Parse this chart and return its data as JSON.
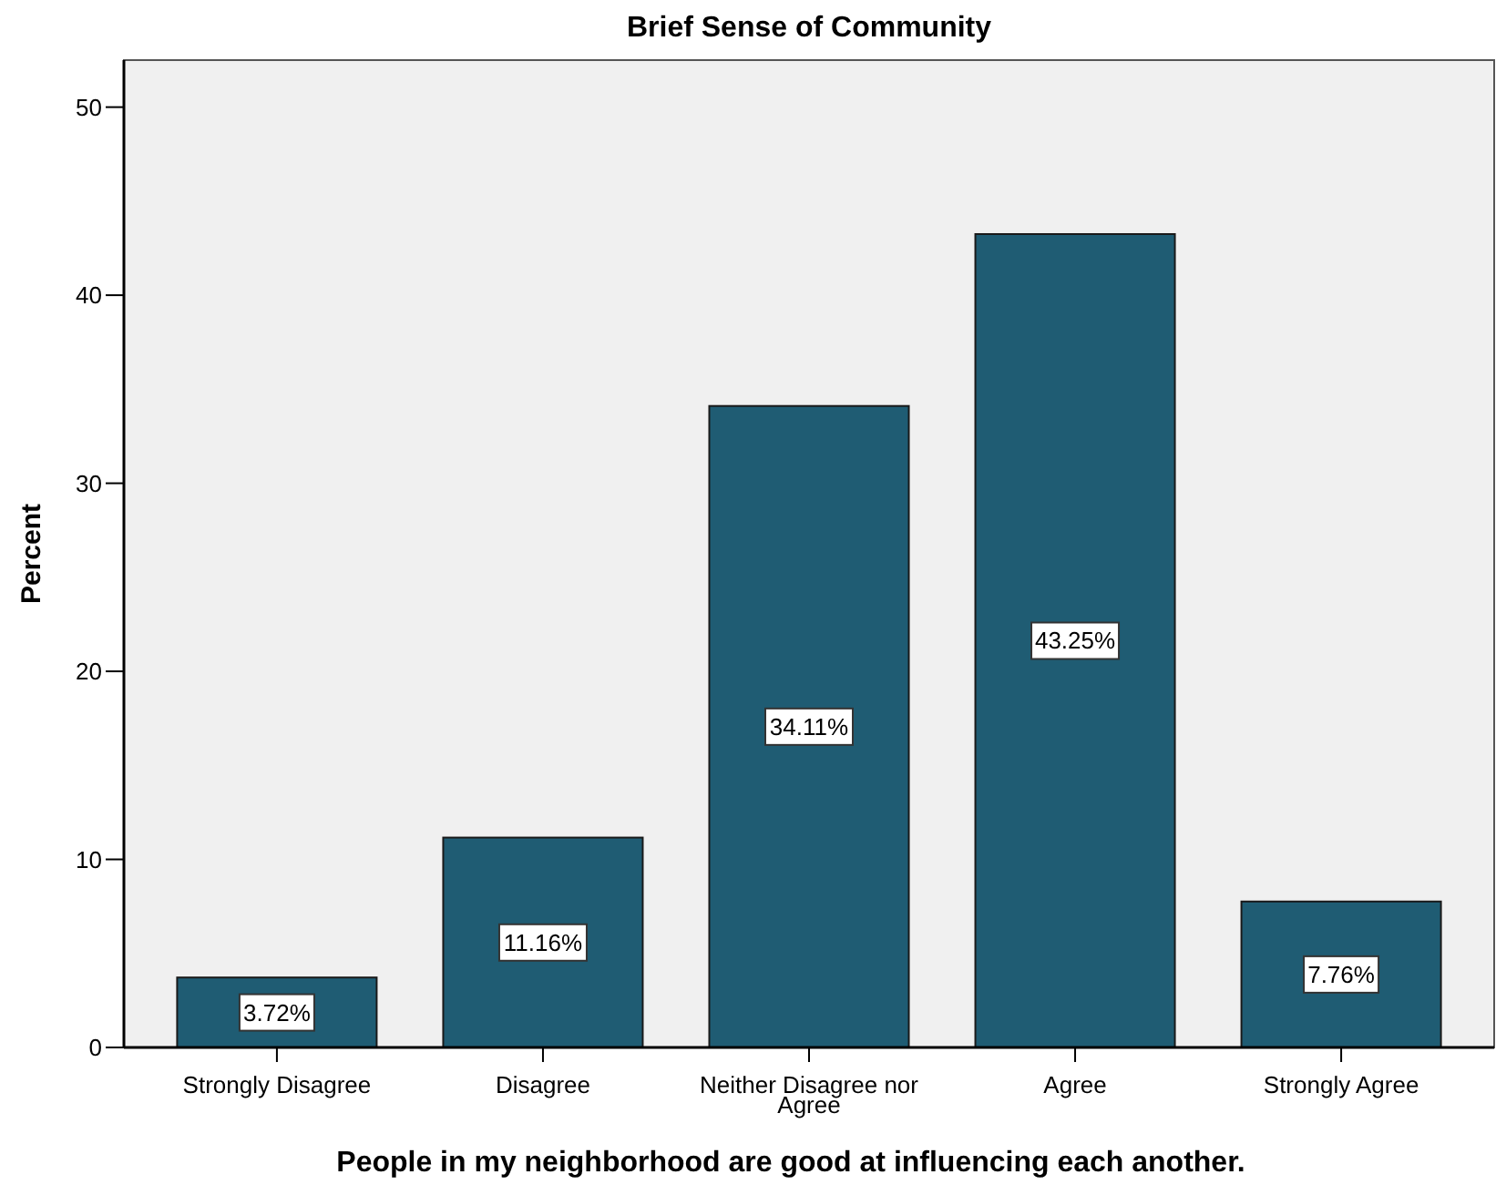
{
  "chart_data": {
    "type": "bar",
    "title": "Brief Sense of Community",
    "xlabel": "People in my neighborhood are good at influencing each another.",
    "ylabel": "Percent",
    "categories": [
      "Strongly Disagree",
      "Disagree",
      "Neither Disagree nor Agree",
      "Agree",
      "Strongly Agree"
    ],
    "values": [
      3.72,
      11.16,
      34.11,
      43.25,
      7.76
    ],
    "value_labels": [
      "3.72%",
      "11.16%",
      "34.11%",
      "43.25%",
      "7.76%"
    ],
    "color": "#1f5c73",
    "ylim": [
      0,
      52.5
    ],
    "yticks": [
      0,
      10,
      20,
      30,
      40,
      50
    ],
    "grid": false
  }
}
